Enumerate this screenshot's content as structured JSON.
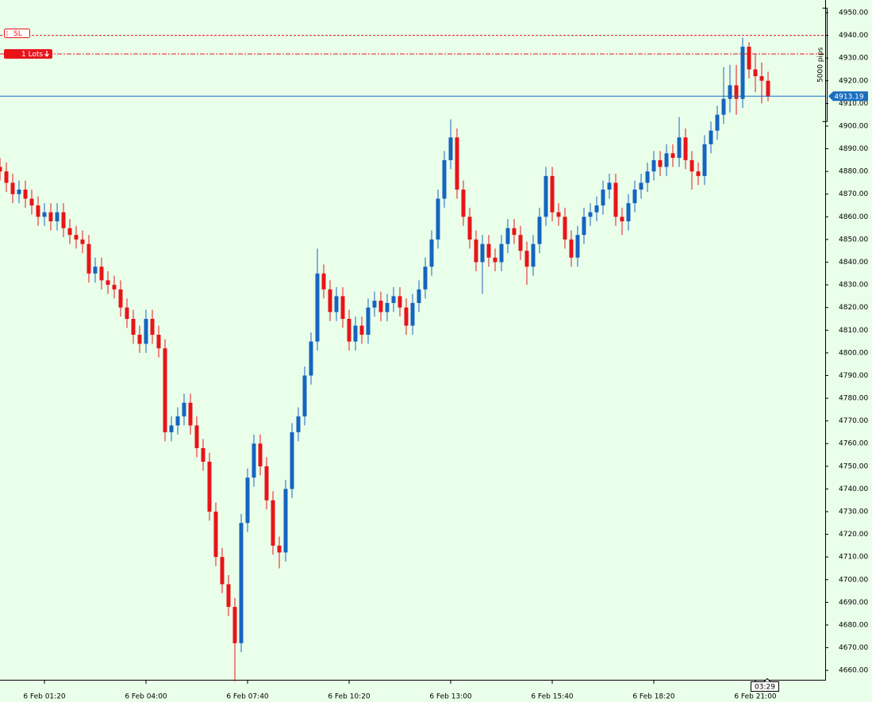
{
  "chart_data": {
    "type": "candlestick",
    "up_color": "#1565c0",
    "down_color": "#e8141a",
    "categories": [
      null,
      null,
      null,
      null,
      null,
      null,
      null,
      "6 Feb 01:20",
      null,
      null,
      null,
      null,
      null,
      null,
      null,
      null,
      null,
      null,
      null,
      null,
      null,
      null,
      null,
      "6 Feb 04:00",
      null,
      null,
      null,
      null,
      null,
      null,
      null,
      null,
      null,
      null,
      null,
      null,
      null,
      null,
      null,
      "6 Feb 07:40",
      null,
      null,
      null,
      null,
      null,
      null,
      null,
      null,
      null,
      null,
      null,
      null,
      null,
      null,
      null,
      "6 Feb 10:20",
      null,
      null,
      null,
      null,
      null,
      null,
      null,
      null,
      null,
      null,
      null,
      null,
      null,
      null,
      null,
      "6 Feb 13:00",
      null,
      null,
      null,
      null,
      null,
      null,
      null,
      null,
      null,
      null,
      null,
      null,
      null,
      null,
      null,
      "6 Feb 15:40",
      null,
      null,
      null,
      null,
      null,
      null,
      null,
      null,
      null,
      null,
      null,
      null,
      null,
      null,
      null,
      "6 Feb 18:20",
      null,
      null,
      null,
      null,
      null,
      null,
      null,
      null,
      null,
      null,
      null,
      null,
      null,
      null,
      null,
      "6 Feb 21:00",
      null,
      null
    ],
    "open": [
      4882,
      4880,
      4875,
      4870,
      4872,
      4868,
      4865,
      4860,
      4862,
      4858,
      4862,
      4855,
      4852,
      4850,
      4848,
      4835,
      4838,
      4832,
      4830,
      4828,
      4820,
      4815,
      4808,
      4804,
      4815,
      4808,
      4802,
      4765,
      4768,
      4772,
      4778,
      4768,
      4758,
      4752,
      4730,
      4710,
      4698,
      4688,
      4672,
      4725,
      4745,
      4760,
      4750,
      4735,
      4715,
      4712,
      4740,
      4765,
      4772,
      4790,
      4805,
      4835,
      4828,
      4818,
      4825,
      4815,
      4805,
      4812,
      4808,
      4820,
      4823,
      4818,
      4822,
      4825,
      4820,
      4812,
      4822,
      4828,
      4838,
      4850,
      4868,
      4885,
      4895,
      4872,
      4860,
      4850,
      4840,
      4848,
      4842,
      4840,
      4848,
      4855,
      4852,
      4845,
      4838,
      4848,
      4860,
      4878,
      4862,
      4860,
      4850,
      4842,
      4852,
      4860,
      4862,
      4865,
      4872,
      4875,
      4860,
      4858,
      4866,
      4872,
      4875,
      4880,
      4885,
      4882,
      4888,
      4886,
      4895,
      4885,
      4880,
      4878,
      4892,
      4898,
      4905,
      4912,
      4918,
      4912,
      4935,
      4925,
      4922,
      4920
    ],
    "high": [
      4886,
      4884,
      4879,
      4876,
      4876,
      4872,
      4869,
      4866,
      4866,
      4866,
      4866,
      4859,
      4856,
      4854,
      4852,
      4842,
      4842,
      4836,
      4834,
      4832,
      4824,
      4819,
      4812,
      4819,
      4819,
      4812,
      4806,
      4772,
      4776,
      4782,
      4782,
      4772,
      4762,
      4756,
      4734,
      4714,
      4702,
      4692,
      4729,
      4749,
      4764,
      4764,
      4754,
      4739,
      4719,
      4744,
      4769,
      4776,
      4794,
      4809,
      4846,
      4839,
      4832,
      4829,
      4829,
      4819,
      4816,
      4816,
      4824,
      4827,
      4827,
      4826,
      4829,
      4829,
      4824,
      4826,
      4832,
      4842,
      4854,
      4872,
      4889,
      4903,
      4899,
      4876,
      4864,
      4854,
      4852,
      4852,
      4846,
      4852,
      4859,
      4859,
      4856,
      4849,
      4852,
      4864,
      4882,
      4882,
      4866,
      4864,
      4854,
      4856,
      4864,
      4866,
      4869,
      4876,
      4879,
      4879,
      4864,
      4870,
      4876,
      4879,
      4884,
      4889,
      4889,
      4892,
      4892,
      4904,
      4899,
      4889,
      4884,
      4896,
      4902,
      4909,
      4926,
      4927,
      4927,
      4939,
      4937,
      4932,
      4928,
      4924
    ],
    "low": [
      4876,
      4871,
      4866,
      4866,
      4864,
      4861,
      4856,
      4856,
      4854,
      4854,
      4851,
      4848,
      4846,
      4844,
      4831,
      4831,
      4828,
      4826,
      4824,
      4816,
      4811,
      4804,
      4800,
      4800,
      4804,
      4798,
      4761,
      4761,
      4764,
      4768,
      4764,
      4754,
      4748,
      4726,
      4706,
      4694,
      4684,
      4655,
      4668,
      4721,
      4741,
      4746,
      4731,
      4711,
      4705,
      4708,
      4736,
      4761,
      4768,
      4786,
      4801,
      4824,
      4814,
      4814,
      4811,
      4801,
      4801,
      4804,
      4804,
      4816,
      4814,
      4814,
      4818,
      4816,
      4808,
      4808,
      4818,
      4824,
      4834,
      4846,
      4864,
      4881,
      4868,
      4856,
      4846,
      4836,
      4826,
      4838,
      4836,
      4836,
      4844,
      4848,
      4841,
      4830,
      4834,
      4844,
      4856,
      4858,
      4856,
      4846,
      4838,
      4838,
      4848,
      4856,
      4858,
      4861,
      4868,
      4856,
      4852,
      4854,
      4862,
      4868,
      4871,
      4876,
      4878,
      4878,
      4882,
      4882,
      4881,
      4872,
      4874,
      4874,
      4888,
      4894,
      4901,
      4906,
      4905,
      4908,
      4921,
      4915,
      4910,
      4911
    ],
    "close": [
      4880,
      4875,
      4870,
      4872,
      4868,
      4865,
      4860,
      4862,
      4858,
      4862,
      4855,
      4852,
      4850,
      4848,
      4835,
      4838,
      4832,
      4830,
      4828,
      4820,
      4815,
      4808,
      4804,
      4815,
      4808,
      4802,
      4765,
      4768,
      4772,
      4778,
      4768,
      4758,
      4752,
      4730,
      4710,
      4698,
      4688,
      4672,
      4725,
      4745,
      4760,
      4750,
      4735,
      4715,
      4712,
      4740,
      4765,
      4772,
      4790,
      4805,
      4835,
      4828,
      4818,
      4825,
      4815,
      4805,
      4812,
      4808,
      4820,
      4823,
      4818,
      4822,
      4825,
      4820,
      4812,
      4822,
      4828,
      4838,
      4850,
      4868,
      4885,
      4895,
      4872,
      4860,
      4850,
      4840,
      4848,
      4842,
      4840,
      4848,
      4855,
      4852,
      4845,
      4838,
      4848,
      4860,
      4878,
      4862,
      4860,
      4850,
      4842,
      4852,
      4860,
      4862,
      4865,
      4872,
      4875,
      4860,
      4858,
      4866,
      4872,
      4875,
      4880,
      4885,
      4882,
      4888,
      4886,
      4895,
      4885,
      4880,
      4878,
      4892,
      4898,
      4905,
      4912,
      4918,
      4912,
      4935,
      4925,
      4922,
      4920,
      4913
    ],
    "ylim": [
      4655.5,
      4955.6
    ],
    "yticks": [
      {
        "value": 4950,
        "label": "4950.00"
      },
      {
        "value": 4940,
        "label": "4940.00"
      },
      {
        "value": 4930,
        "label": "4930.00"
      },
      {
        "value": 4920,
        "label": "4920.00"
      },
      {
        "value": 4910,
        "label": "4910.00"
      },
      {
        "value": 4900,
        "label": "4900.00"
      },
      {
        "value": 4890,
        "label": "4890.00"
      },
      {
        "value": 4880,
        "label": "4880.00"
      },
      {
        "value": 4870,
        "label": "4870.00"
      },
      {
        "value": 4860,
        "label": "4860.00"
      },
      {
        "value": 4850,
        "label": "4850.00"
      },
      {
        "value": 4840,
        "label": "4840.00"
      },
      {
        "value": 4830,
        "label": "4830.00"
      },
      {
        "value": 4820,
        "label": "4820.00"
      },
      {
        "value": 4810,
        "label": "4810.00"
      },
      {
        "value": 4800,
        "label": "4800.00"
      },
      {
        "value": 4790,
        "label": "4790.00"
      },
      {
        "value": 4780,
        "label": "4780.00"
      },
      {
        "value": 4770,
        "label": "4770.00"
      },
      {
        "value": 4760,
        "label": "4760.00"
      },
      {
        "value": 4750,
        "label": "4750.00"
      },
      {
        "value": 4740,
        "label": "4740.00"
      },
      {
        "value": 4730,
        "label": "4730.00"
      },
      {
        "value": 4720,
        "label": "4720.00"
      },
      {
        "value": 4710,
        "label": "4710.00"
      },
      {
        "value": 4700,
        "label": "4700.00"
      },
      {
        "value": 4690,
        "label": "4690.00"
      },
      {
        "value": 4680,
        "label": "4680.00"
      },
      {
        "value": 4670,
        "label": "4670.00"
      },
      {
        "value": 4660,
        "label": "4660.00"
      }
    ],
    "price_line": {
      "value": 4913.19,
      "label": "4913.19",
      "color": "#1a6ec0"
    },
    "stop_loss": {
      "value": 4940,
      "label": "SL",
      "color": "#e8141a"
    },
    "order": {
      "value": 4931.8,
      "label": "1 Lots",
      "color": "#e8141a"
    },
    "measure": {
      "from": 4902,
      "to": 4952,
      "label": "5000 pips"
    },
    "timer": "03:29"
  }
}
